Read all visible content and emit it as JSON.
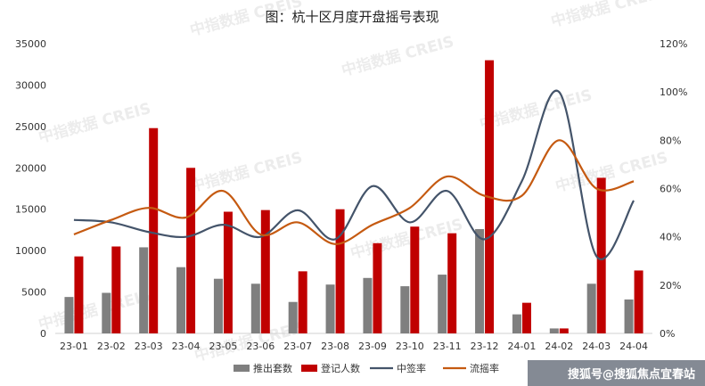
{
  "chart_data": {
    "type": "bar",
    "title": "图：杭十区月度开盘摇号表现",
    "categories": [
      "23-01",
      "23-02",
      "23-03",
      "23-04",
      "23-05",
      "23-06",
      "23-07",
      "23-08",
      "23-09",
      "23-10",
      "23-11",
      "23-12",
      "24-01",
      "24-02",
      "24-03",
      "24-04"
    ],
    "y_left_ticks": [
      "0",
      "5000",
      "10000",
      "15000",
      "20000",
      "25000",
      "30000",
      "35000"
    ],
    "y_right_ticks": [
      "0%",
      "20%",
      "40%",
      "60%",
      "80%",
      "100%",
      "120%"
    ],
    "ylim_left": [
      0,
      35000
    ],
    "ylim_right": [
      0,
      1.2
    ],
    "series": [
      {
        "name": "推出套数",
        "kind": "bar",
        "axis": "left",
        "color": "#7f7f7f",
        "values": [
          4400,
          4900,
          10400,
          8000,
          6600,
          6000,
          3800,
          5900,
          6700,
          5700,
          7100,
          12600,
          2300,
          600,
          6000,
          4100
        ]
      },
      {
        "name": "登记人数",
        "kind": "bar",
        "axis": "left",
        "color": "#c00000",
        "values": [
          9300,
          10500,
          24800,
          20000,
          14700,
          14900,
          7500,
          15000,
          10900,
          12900,
          12100,
          33000,
          3700,
          600,
          18800,
          7600
        ]
      },
      {
        "name": "中签率",
        "kind": "line",
        "axis": "right",
        "color": "#44546a",
        "values": [
          0.47,
          0.46,
          0.42,
          0.4,
          0.45,
          0.4,
          0.51,
          0.39,
          0.61,
          0.46,
          0.59,
          0.39,
          0.63,
          1.0,
          0.32,
          0.55
        ]
      },
      {
        "name": "流摇率",
        "kind": "line",
        "axis": "right",
        "color": "#c55a11",
        "values": [
          0.41,
          0.47,
          0.52,
          0.48,
          0.59,
          0.41,
          0.46,
          0.37,
          0.45,
          0.52,
          0.65,
          0.57,
          0.57,
          0.8,
          0.6,
          0.63
        ]
      }
    ],
    "legend_position": "bottom",
    "grid": false
  },
  "watermark": {
    "text": "中指数据 CREIS"
  },
  "credit": {
    "text": "搜狐号@搜狐焦点宜春站"
  }
}
